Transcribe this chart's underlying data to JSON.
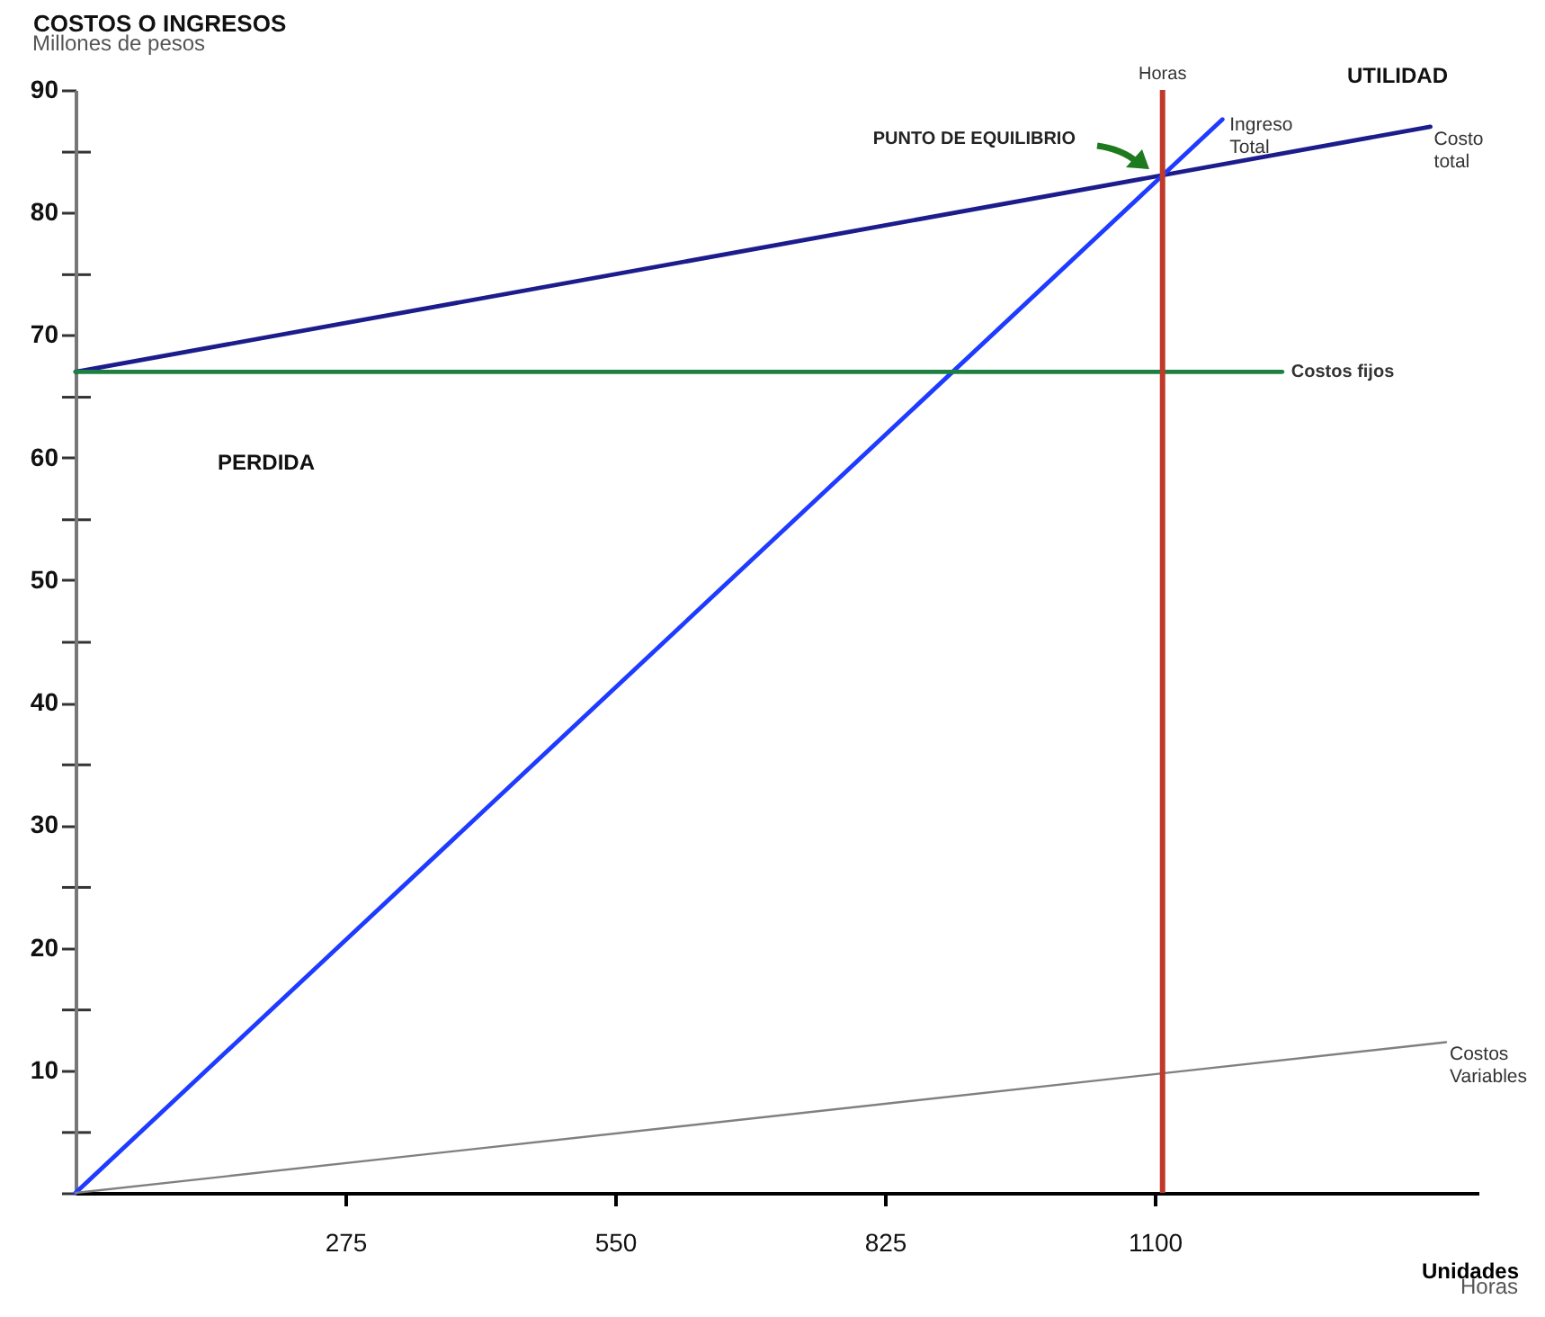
{
  "chart_data": {
    "type": "line",
    "ylabel": "COSTOS O INGRESOS",
    "xlabel": "Unidades",
    "xlim": [
      0,
      1430
    ],
    "ylim": [
      0,
      90
    ],
    "xticks": [
      275,
      550,
      825,
      1100
    ],
    "yticks": [
      {
        "value": 0,
        "label": null
      },
      {
        "value": 5,
        "label": null
      },
      10,
      {
        "value": 15,
        "label": null
      },
      20,
      {
        "value": 25,
        "label": null
      },
      30,
      {
        "value": 35,
        "label": null
      },
      40,
      {
        "value": 45,
        "label": null
      },
      50,
      {
        "value": 55,
        "label": null
      },
      60,
      {
        "value": 65,
        "label": null
      },
      70,
      {
        "value": 75,
        "label": null
      },
      80,
      {
        "value": 85,
        "label": null
      },
      90
    ],
    "grid": false,
    "series": [
      {
        "name": "Costo total",
        "color": "#1c1c8c",
        "x": [
          0,
          1381
        ],
        "values": [
          67,
          87
        ]
      },
      {
        "name": "Ingreso Total",
        "color": "#1f3bff",
        "x": [
          0,
          1169
        ],
        "values": [
          0,
          87.6
        ]
      },
      {
        "name": "Costos fijos",
        "color": "#1e8040",
        "x": [
          0,
          1230
        ],
        "values": [
          67,
          67
        ]
      },
      {
        "name": "Costos Variables",
        "color": "#808080",
        "x": [
          0,
          1397
        ],
        "values": [
          0,
          12.3
        ]
      }
    ],
    "ref_lines": [
      {
        "axis": "x",
        "value": 1108,
        "label": "Horas",
        "color": "#c0392b"
      }
    ],
    "annotations": [
      "Millones de pesos",
      "Horas",
      "PUNTO DE EQUILIBRIO",
      "UTILIDAD",
      "PERDIDA"
    ]
  }
}
